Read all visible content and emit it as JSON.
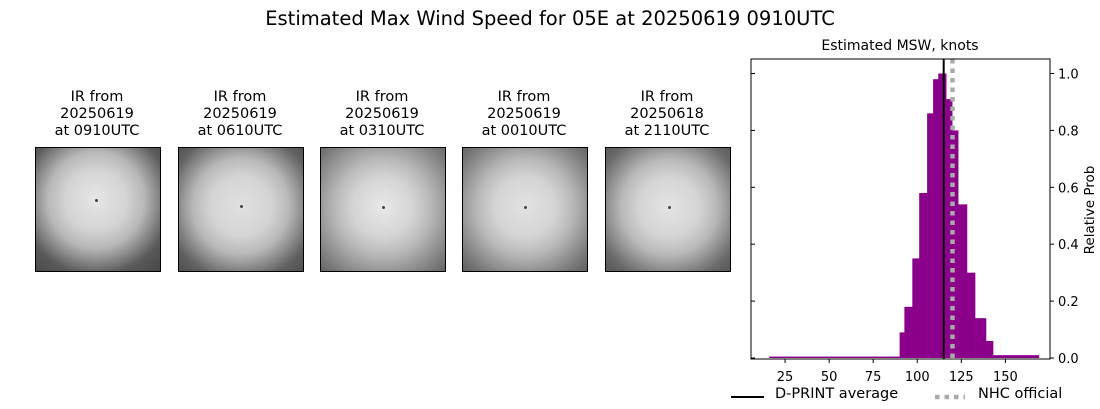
{
  "suptitle": "Estimated Max Wind Speed for 05E at 20250619 0910UTC",
  "panels": [
    {
      "line1": "IR from",
      "line2": "20250619",
      "line3": "at 0910UTC"
    },
    {
      "line1": "IR from",
      "line2": "20250619",
      "line3": "at 0610UTC"
    },
    {
      "line1": "IR from",
      "line2": "20250619",
      "line3": "at 0310UTC"
    },
    {
      "line1": "IR from",
      "line2": "20250619",
      "line3": "at 0010UTC"
    },
    {
      "line1": "IR from",
      "line2": "20250618",
      "line3": "at 2110UTC"
    }
  ],
  "legend": {
    "dprint_label": "D-PRINT average",
    "nhc_label": "NHC official"
  },
  "chart_data": {
    "type": "bar",
    "title": "Estimated MSW, knots",
    "xlabel": "",
    "ylabel": "Relative Prob",
    "xlim": [
      0,
      175
    ],
    "ylim": [
      0,
      1.05
    ],
    "xticks": [
      25,
      50,
      75,
      100,
      125,
      150
    ],
    "yticks": [
      0.0,
      0.2,
      0.4,
      0.6,
      0.8,
      1.0
    ],
    "ytick_labels": [
      "0.0",
      "0.2",
      "0.4",
      "0.6",
      "0.8",
      "1.0"
    ],
    "y_axis_position": "right",
    "bar_color": "#8b008b",
    "bins": [
      {
        "x0": 16,
        "x1": 90,
        "value": 0.005
      },
      {
        "x0": 90,
        "x1": 92.7,
        "value": 0.09
      },
      {
        "x0": 92.7,
        "x1": 97.2,
        "value": 0.18
      },
      {
        "x0": 97.2,
        "x1": 101.1,
        "value": 0.35
      },
      {
        "x0": 101.1,
        "x1": 105.6,
        "value": 0.58
      },
      {
        "x0": 105.6,
        "x1": 109.0,
        "value": 0.86
      },
      {
        "x0": 109.0,
        "x1": 111.9,
        "value": 0.98
      },
      {
        "x0": 111.9,
        "x1": 116.4,
        "value": 1.0
      },
      {
        "x0": 116.4,
        "x1": 119.8,
        "value": 0.91
      },
      {
        "x0": 119.8,
        "x1": 123.2,
        "value": 0.8
      },
      {
        "x0": 123.2,
        "x1": 128.2,
        "value": 0.54
      },
      {
        "x0": 128.2,
        "x1": 132.8,
        "value": 0.3
      },
      {
        "x0": 132.8,
        "x1": 139.0,
        "value": 0.14
      },
      {
        "x0": 139.0,
        "x1": 143.0,
        "value": 0.06
      },
      {
        "x0": 143.0,
        "x1": 169.0,
        "value": 0.01
      }
    ],
    "vlines": [
      {
        "name": "D-PRINT average",
        "x": 115,
        "color": "#000000",
        "style": "solid"
      },
      {
        "name": "NHC official",
        "x": 120,
        "color": "#aaaaaa",
        "style": "dotted"
      }
    ],
    "legend_position": "bottom"
  }
}
